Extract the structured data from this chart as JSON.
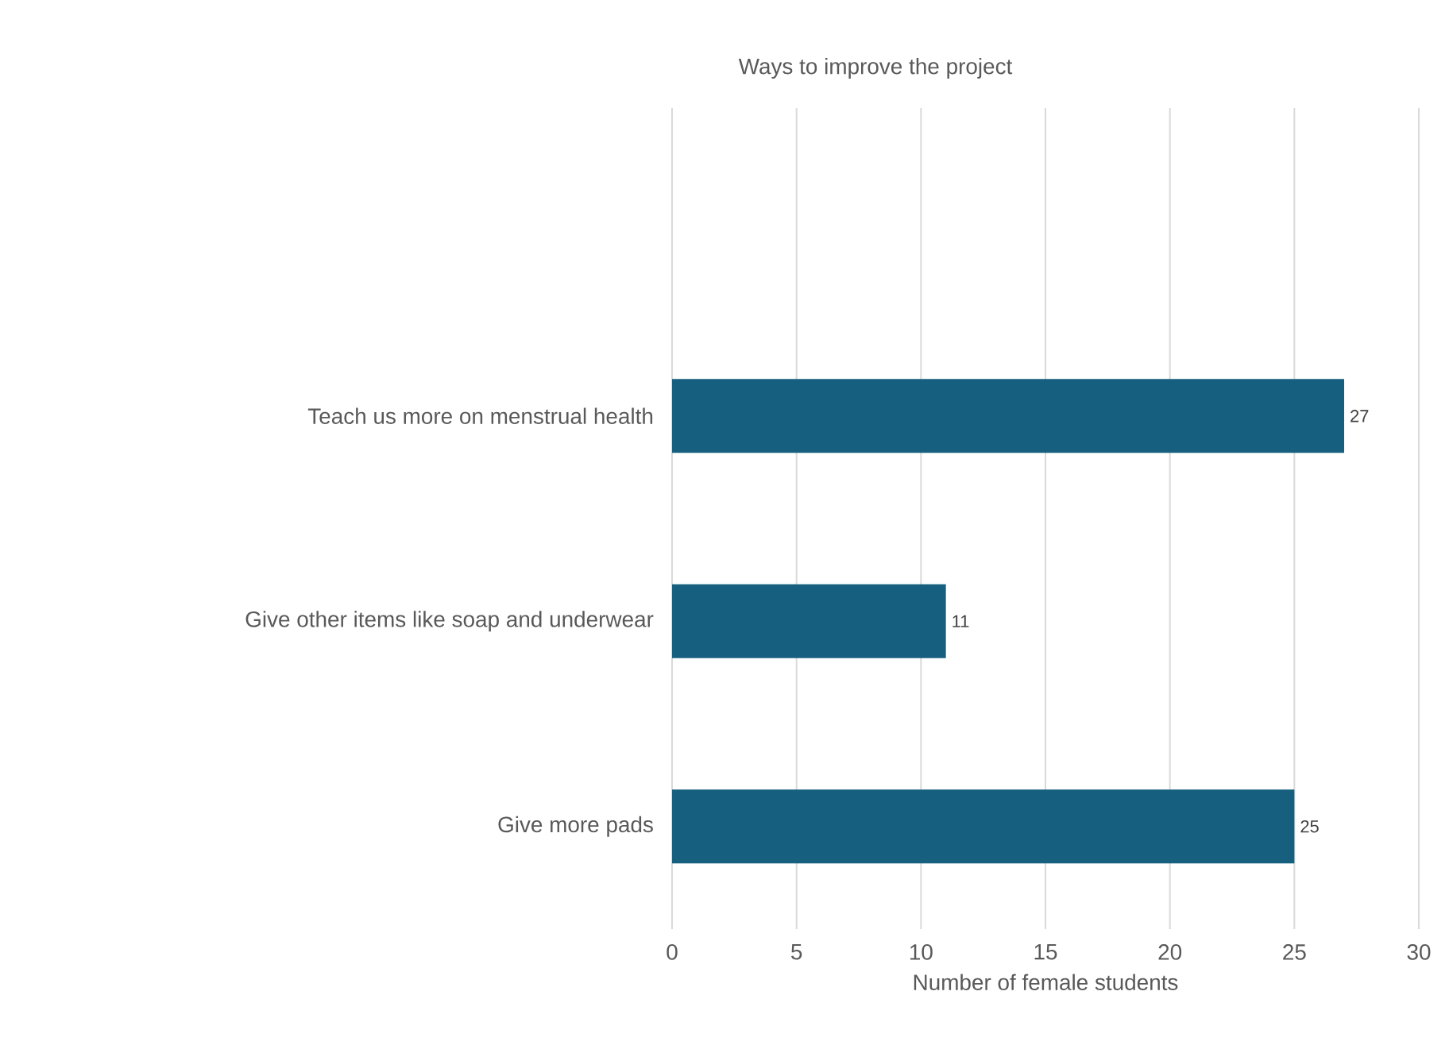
{
  "chart_data": {
    "type": "bar",
    "orientation": "horizontal",
    "title": "Ways to improve the project",
    "xlabel": "Number of female students",
    "categories": [
      null,
      "Teach  us more on menstrual health",
      "Give other items like soap and underwear",
      "Give more  pads"
    ],
    "values": [
      null,
      27,
      11,
      25
    ],
    "color": "#165f7f",
    "xlim": [
      0,
      30
    ],
    "xticks": [
      0,
      5,
      10,
      15,
      20,
      25,
      30
    ],
    "grid": "x",
    "data_labels": true
  }
}
